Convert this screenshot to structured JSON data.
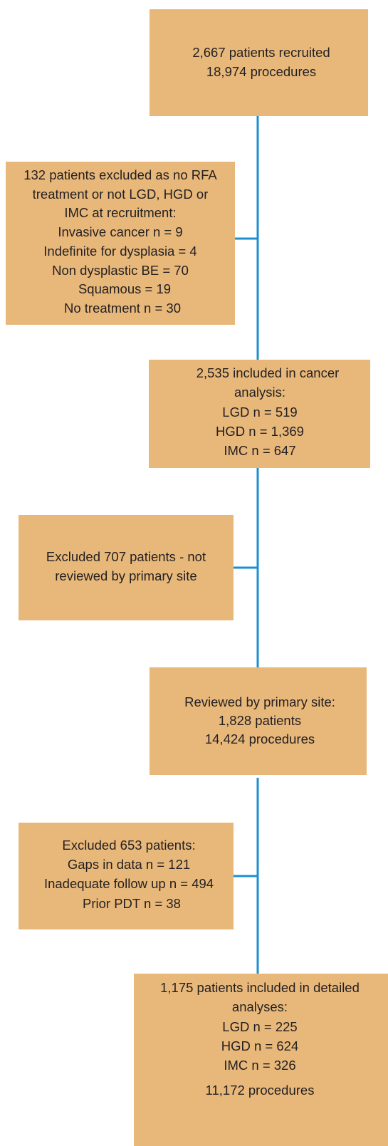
{
  "nodes": [
    {
      "lines": [
        "2,667 patients recruited",
        "18,974 procedures"
      ]
    },
    {
      "lines": [
        "132 patients excluded as no RFA",
        "treatment or not LGD, HGD or",
        "IMC at recruitment:",
        "Invasive cancer n = 9",
        "Indefinite for dysplasia = 4",
        "Non dysplastic BE = 70",
        "Squamous  = 19",
        "No treatment n = 30"
      ]
    },
    {
      "lines": [
        "2,535 included in cancer",
        "analysis:",
        "LGD n = 519",
        "HGD n = 1,369",
        "IMC n = 647"
      ]
    },
    {
      "lines": [
        "Excluded 707 patients  - not",
        "reviewed by primary site"
      ]
    },
    {
      "lines": [
        "Reviewed by primary site:",
        "1,828 patients",
        "14,424 procedures"
      ]
    },
    {
      "lines": [
        "Excluded 653 patients:",
        "Gaps in data n = 121",
        "Inadequate follow up n = 494",
        "Prior PDT n = 38"
      ]
    },
    {
      "lines": [
        "1,175 patients included in detailed",
        "analyses:",
        "LGD n = 225",
        "HGD n = 624",
        "IMC n = 326",
        "11,172 procedures"
      ]
    }
  ]
}
